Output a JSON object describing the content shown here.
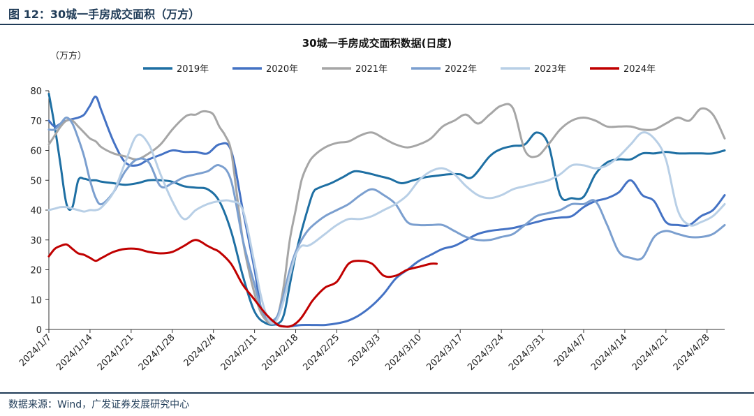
{
  "figure": {
    "title": "图 12：30城一手房成交面积（万方）",
    "source": "数据来源：Wind，广发证券发展研究中心"
  },
  "chart_data": {
    "type": "line",
    "title": "30城一手房成交面积数据(日度)",
    "ylabel": "（万方）",
    "xlabel": "",
    "ylim": [
      0,
      80
    ],
    "yticks": [
      "0",
      "10",
      "20",
      "30",
      "40",
      "50",
      "60",
      "70",
      "80"
    ],
    "x_tick_labels": [
      "2024/1/7",
      "2024/1/14",
      "2024/1/21",
      "2024/1/28",
      "2024/2/4",
      "2024/2/11",
      "2024/2/18",
      "2024/2/25",
      "2024/3/3",
      "2024/3/10",
      "2024/3/17",
      "2024/3/24",
      "2024/3/31",
      "2024/4/7",
      "2024/4/14",
      "2024/4/21",
      "2024/4/28"
    ],
    "x_day_range": [
      7,
      122
    ],
    "legend_position": "top",
    "grid": false,
    "series": [
      {
        "name": "2019年",
        "color": "#1e6fa3",
        "width": 3,
        "x": [
          7,
          8,
          9,
          10,
          11,
          12,
          13,
          14,
          15,
          16,
          18,
          20,
          22,
          24,
          26,
          28,
          30,
          32,
          34,
          36,
          38,
          40,
          42,
          44,
          46,
          47,
          48,
          49,
          50,
          51,
          52,
          53,
          55,
          57,
          59,
          61,
          63,
          65,
          67,
          69,
          71,
          73,
          75,
          77,
          79,
          82,
          84,
          86,
          88,
          90,
          92,
          94,
          96,
          98,
          100,
          102,
          104,
          106,
          108,
          110,
          112,
          114,
          116,
          118,
          120,
          122
        ],
        "y": [
          79,
          68,
          55,
          42,
          41,
          50,
          50.5,
          50,
          50,
          49.5,
          49,
          48.5,
          49,
          50,
          50,
          49.5,
          48,
          47.5,
          47,
          43,
          33,
          18,
          6,
          2,
          2,
          5,
          15,
          25,
          33,
          40,
          46,
          47.5,
          49,
          51,
          53,
          52.5,
          51.5,
          50.5,
          49,
          50,
          51,
          51.5,
          52,
          52,
          51,
          58,
          60.5,
          61.5,
          62,
          66,
          62,
          45,
          44,
          44.5,
          52,
          56,
          57,
          57,
          59,
          59,
          59.5,
          59,
          59,
          59,
          59,
          60
        ]
      },
      {
        "name": "2020年",
        "color": "#4472c4",
        "width": 3,
        "x": [
          7,
          8,
          9,
          10,
          11,
          12,
          13,
          14,
          15,
          16,
          18,
          20,
          22,
          24,
          26,
          28,
          30,
          32,
          34,
          36,
          38,
          40,
          42,
          43,
          44,
          45,
          46,
          47,
          48,
          50,
          52,
          54,
          56,
          58,
          60,
          62,
          64,
          66,
          68,
          70,
          72,
          74,
          76,
          78,
          80,
          82,
          84,
          86,
          88,
          90,
          92,
          94,
          96,
          98,
          100,
          102,
          104,
          106,
          108,
          110,
          112,
          114,
          116,
          118,
          120,
          122
        ],
        "y": [
          70,
          68,
          69,
          70,
          70.5,
          71,
          72,
          75,
          78,
          73,
          63,
          56,
          55,
          57,
          58.5,
          60,
          59.5,
          59.5,
          59,
          62,
          60,
          40,
          20,
          8,
          3,
          2,
          1.5,
          1,
          1,
          1.5,
          1.5,
          1.5,
          2,
          3,
          5,
          8,
          12,
          17,
          20,
          23,
          25,
          27,
          28,
          30,
          32,
          33,
          33.5,
          34,
          35,
          36,
          37,
          37.5,
          38,
          41,
          43,
          44,
          46,
          50,
          45,
          43,
          36,
          35,
          35,
          38,
          40,
          45
        ]
      },
      {
        "name": "2021年",
        "color": "#a6a6a6",
        "width": 3,
        "x": [
          7,
          8,
          9,
          10,
          11,
          12,
          13,
          14,
          15,
          16,
          18,
          20,
          22,
          24,
          26,
          28,
          30,
          31,
          32,
          33,
          34,
          35,
          36,
          37,
          38,
          39,
          40,
          41,
          42,
          43,
          44,
          45,
          46,
          47,
          48,
          49,
          50,
          51,
          52,
          54,
          56,
          58,
          60,
          62,
          64,
          66,
          68,
          70,
          72,
          74,
          76,
          78,
          80,
          82,
          84,
          86,
          88,
          90,
          92,
          94,
          96,
          98,
          100,
          102,
          104,
          106,
          108,
          110,
          112,
          114,
          116,
          118,
          120,
          122
        ],
        "y": [
          62,
          65,
          68,
          70,
          70,
          68,
          66,
          64,
          63,
          61,
          59,
          58,
          57,
          59,
          62,
          67,
          71,
          72,
          72,
          73,
          73,
          72,
          68,
          65,
          60,
          45,
          30,
          20,
          12,
          6,
          3,
          2,
          5,
          15,
          30,
          40,
          50,
          55,
          58,
          61,
          62.5,
          63,
          65,
          66,
          64,
          62,
          61,
          62,
          64,
          68,
          70,
          72,
          69,
          72,
          75,
          74,
          60,
          58,
          62,
          67,
          70,
          71,
          70,
          68,
          68,
          68,
          67,
          67,
          69,
          71,
          70,
          74,
          72,
          64
        ]
      },
      {
        "name": "2022年",
        "color": "#7b9fcf",
        "width": 3,
        "x": [
          7,
          8,
          9,
          10,
          11,
          12,
          13,
          14,
          15,
          16,
          18,
          20,
          22,
          24,
          26,
          28,
          30,
          32,
          34,
          36,
          38,
          40,
          42,
          43,
          44,
          45,
          46,
          47,
          48,
          49,
          50,
          51,
          52,
          54,
          56,
          58,
          60,
          62,
          64,
          66,
          68,
          70,
          72,
          74,
          76,
          78,
          80,
          82,
          84,
          86,
          88,
          90,
          92,
          94,
          96,
          98,
          100,
          102,
          104,
          106,
          108,
          110,
          112,
          114,
          116,
          118,
          120,
          122
        ],
        "y": [
          67,
          67,
          69,
          71,
          69,
          64,
          58,
          50,
          44,
          42,
          46,
          53,
          57,
          56,
          48,
          49,
          51,
          52,
          53,
          55,
          50,
          30,
          15,
          8,
          4,
          3,
          5,
          12,
          20,
          26,
          30,
          33,
          35,
          38,
          40,
          42,
          45,
          47,
          45,
          42,
          36,
          35,
          35,
          35,
          33,
          31,
          30,
          30,
          31,
          32,
          35,
          38,
          39,
          40,
          42,
          42,
          43,
          35,
          26,
          24,
          24,
          31,
          33,
          32,
          31,
          31,
          32,
          35
        ]
      },
      {
        "name": "2023年",
        "color": "#b8cfe6",
        "width": 3,
        "x": [
          7,
          8,
          9,
          10,
          11,
          12,
          13,
          14,
          15,
          16,
          18,
          20,
          22,
          24,
          26,
          28,
          30,
          32,
          34,
          36,
          38,
          40,
          42,
          43,
          44,
          45,
          46,
          47,
          48,
          49,
          50,
          51,
          52,
          54,
          56,
          58,
          60,
          62,
          64,
          66,
          68,
          70,
          72,
          74,
          76,
          78,
          80,
          82,
          84,
          86,
          88,
          90,
          92,
          94,
          96,
          98,
          100,
          102,
          104,
          106,
          108,
          110,
          112,
          114,
          116,
          118,
          120,
          122
        ],
        "y": [
          40,
          40.5,
          41,
          41,
          40.5,
          40,
          39.5,
          40,
          40,
          41,
          46,
          56,
          65,
          62,
          52,
          43,
          37,
          40,
          42,
          43,
          43,
          40,
          22,
          12,
          5,
          2,
          4,
          10,
          18,
          25,
          28,
          28,
          29,
          32,
          35,
          37,
          37,
          38,
          40,
          42,
          45,
          50,
          53,
          54,
          52,
          48,
          45,
          44,
          45,
          47,
          48,
          49,
          50,
          52,
          55,
          55,
          54,
          55,
          58,
          62,
          66,
          64,
          57,
          40,
          35,
          36,
          38,
          42
        ]
      },
      {
        "name": "2024年",
        "color": "#c00000",
        "width": 3,
        "x": [
          7,
          8,
          9,
          10,
          11,
          12,
          13,
          14,
          15,
          16,
          18,
          20,
          22,
          24,
          26,
          28,
          30,
          32,
          34,
          35,
          36,
          38,
          40,
          42,
          44,
          46,
          47,
          48,
          49,
          50,
          51,
          52,
          54,
          56,
          58,
          60,
          62,
          64,
          66,
          68,
          70,
          72,
          73
        ],
        "y": [
          24.5,
          27,
          28,
          28.5,
          27,
          25.5,
          25,
          24,
          23,
          24,
          26,
          27,
          27,
          26,
          25.5,
          26,
          28,
          30,
          28,
          27,
          26,
          22,
          15,
          10,
          5,
          1.5,
          1,
          1,
          2,
          4,
          7,
          10,
          14,
          16,
          22,
          23,
          22,
          18,
          18,
          20,
          21,
          22,
          22
        ]
      }
    ],
    "legend": [
      "2019年",
      "2020年",
      "2021年",
      "2022年",
      "2023年",
      "2024年"
    ]
  }
}
